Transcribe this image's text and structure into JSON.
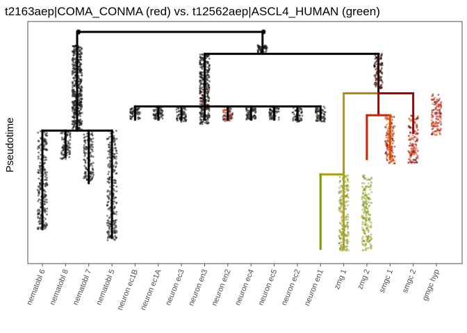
{
  "chart_data": {
    "type": "scatter",
    "title": "t2163aep|COMA_CONMA (red) vs. t12562aep|ASCL4_HUMAN (green)",
    "xlabel": "",
    "ylabel": "Pseudotime",
    "grid": false,
    "legend": "none",
    "categories": [
      "nematobl 6",
      "nematobl 8",
      "nematobl 7",
      "nematobl 5",
      "neuron ec1B",
      "neuron ec1A",
      "neuron ec3",
      "neuron en3",
      "neuron en2",
      "neuron ec4",
      "neuron ec5",
      "neuron ec2",
      "neuron en1",
      "zmg 1",
      "zmg 2",
      "smgc 1",
      "smgc 2",
      "gmgc hyp"
    ],
    "colors": {
      "tree": "#000000",
      "red_gene": "#cc0000",
      "green_gene": "#6e9e00",
      "mixed": "#b8860b",
      "panel_border": "#4d4d4d"
    },
    "tree_branches": [
      {
        "name": "root",
        "span": [
          3.5,
          10.5
        ],
        "pseudotime": 0.0
      },
      {
        "name": "nematoblast trunk",
        "span": [
          2.5,
          2.5
        ],
        "pseudotime": [
          0.0,
          0.45
        ]
      },
      {
        "name": "nematoblast split",
        "span": [
          1,
          4
        ],
        "pseudotime": 0.45
      },
      {
        "name": "neural/gland stem",
        "span": [
          10.5,
          10.5
        ],
        "pseudotime": [
          0.0,
          0.1
        ]
      },
      {
        "name": "neural/gland split",
        "span": [
          8,
          15.5
        ],
        "pseudotime": 0.1
      },
      {
        "name": "neuron trunk",
        "span": [
          8,
          8
        ],
        "pseudotime": [
          0.1,
          0.34
        ]
      },
      {
        "name": "neuron split",
        "span": [
          5,
          13
        ],
        "pseudotime": 0.34
      },
      {
        "name": "gland trunk",
        "span": [
          15.5,
          15.5
        ],
        "pseudotime": [
          0.1,
          0.28
        ]
      },
      {
        "name": "gland split",
        "span": [
          14,
          17
        ],
        "pseudotime": 0.28
      },
      {
        "name": "zmg split",
        "span": [
          13,
          14
        ],
        "pseudotime": 0.65
      },
      {
        "name": "smgc split",
        "span": [
          15,
          16
        ],
        "pseudotime": 0.38
      }
    ],
    "series": [
      {
        "category": "nematobl 6",
        "pseudotime_range": [
          0.45,
          0.9
        ],
        "color": "black"
      },
      {
        "category": "nematobl 8",
        "pseudotime_range": [
          0.45,
          0.58
        ],
        "color": "black"
      },
      {
        "category": "nematobl 7",
        "pseudotime_range": [
          0.45,
          0.68
        ],
        "color": "black"
      },
      {
        "category": "nematobl 5",
        "pseudotime_range": [
          0.45,
          0.95
        ],
        "color": "black"
      },
      {
        "category": "neuron ec1B",
        "pseudotime_range": [
          0.34,
          0.4
        ],
        "color": "black"
      },
      {
        "category": "neuron ec1A",
        "pseudotime_range": [
          0.34,
          0.4
        ],
        "color": "black"
      },
      {
        "category": "neuron ec3",
        "pseudotime_range": [
          0.34,
          0.41
        ],
        "color": "black"
      },
      {
        "category": "neuron en3",
        "pseudotime_range": [
          0.34,
          0.42
        ],
        "color": "black"
      },
      {
        "category": "neuron en2",
        "pseudotime_range": [
          0.34,
          0.41
        ],
        "color": "red"
      },
      {
        "category": "neuron ec4",
        "pseudotime_range": [
          0.34,
          0.4
        ],
        "color": "black"
      },
      {
        "category": "neuron ec5",
        "pseudotime_range": [
          0.34,
          0.4
        ],
        "color": "black"
      },
      {
        "category": "neuron ec2",
        "pseudotime_range": [
          0.34,
          0.41
        ],
        "color": "black"
      },
      {
        "category": "neuron en1",
        "pseudotime_range": [
          0.34,
          0.41
        ],
        "color": "black"
      },
      {
        "category": "zmg 1",
        "pseudotime_range": [
          0.65,
          1.0
        ],
        "color": "green"
      },
      {
        "category": "zmg 2",
        "pseudotime_range": [
          0.65,
          1.0
        ],
        "color": "green"
      },
      {
        "category": "smgc 1",
        "pseudotime_range": [
          0.38,
          0.6
        ],
        "color": "red"
      },
      {
        "category": "smgc 2",
        "pseudotime_range": [
          0.38,
          0.6
        ],
        "color": "red"
      },
      {
        "category": "gmgc hyp",
        "pseudotime_range": [
          0.28,
          0.47
        ],
        "color": "red"
      }
    ]
  }
}
